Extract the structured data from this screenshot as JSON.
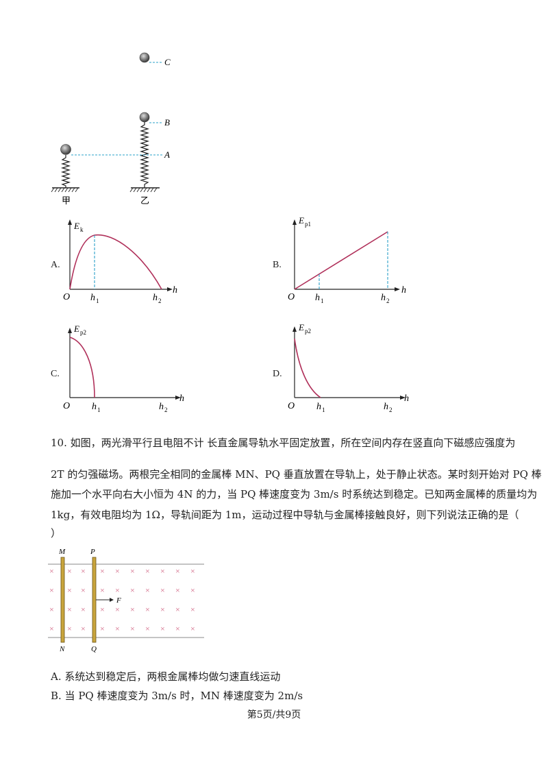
{
  "springs": {
    "labels": {
      "C": "C",
      "B": "B",
      "A": "A",
      "jia": "甲",
      "yi": "乙"
    }
  },
  "graphs": [
    {
      "option": "A.",
      "ylabel": "E",
      "ysub": "k",
      "origin": "O",
      "x1": "h",
      "x1sub": "1",
      "x2": "h",
      "x2sub": "2",
      "xaxis": "h"
    },
    {
      "option": "B.",
      "ylabel": "E",
      "ysub": "p1",
      "origin": "O",
      "x1": "h",
      "x1sub": "1",
      "x2": "h",
      "x2sub": "2",
      "xaxis": "h"
    },
    {
      "option": "C.",
      "ylabel": "E",
      "ysub": "p2",
      "origin": "O",
      "x1": "h",
      "x1sub": "1",
      "x2": "h",
      "x2sub": "2",
      "xaxis": "h"
    },
    {
      "option": "D.",
      "ylabel": "E",
      "ysub": "p2",
      "origin": "O",
      "x1": "h",
      "x1sub": "1",
      "x2": "h",
      "x2sub": "2",
      "xaxis": "h"
    }
  ],
  "question": {
    "line1": "10. 如图，两光滑平行且电阻不计    长直金属导轨水平固定放置，所在空间内存在竖直向下磁感应强度为",
    "line2": "2T 的匀强磁场。两根完全相同的金属棒 MN、PQ 垂直放置在导轨上，处于静止状态。某时刻开始对 PQ 棒",
    "line3": "施加一个水平向右大小恒为 4N 的力，当 PQ 棒速度变为 3m/s 时系统达到稳定。已知两金属棒的质量均为",
    "line4": "1kg，有效电阻均为 1Ω，导轨间距为 1m，运动过程中导轨与金属棒接触良好，则下列说法正确的是（",
    "line5": "）"
  },
  "rails_figure": {
    "labels": {
      "M": "M",
      "P": "P",
      "N": "N",
      "Q": "Q",
      "F": "F"
    },
    "cross": "×"
  },
  "options": {
    "A": "A. 系统达到稳定后，两根金属棒均做匀速直线运动",
    "B": "B. 当 PQ 棒速度变为 3m/s 时，MN 棒速度变为 2m/s"
  },
  "footer": "第5页/共9页",
  "colors": {
    "curve": "#b0305a",
    "dash": "#2aa0c8",
    "rod": "#c8a43c",
    "cross": "#d06080"
  }
}
